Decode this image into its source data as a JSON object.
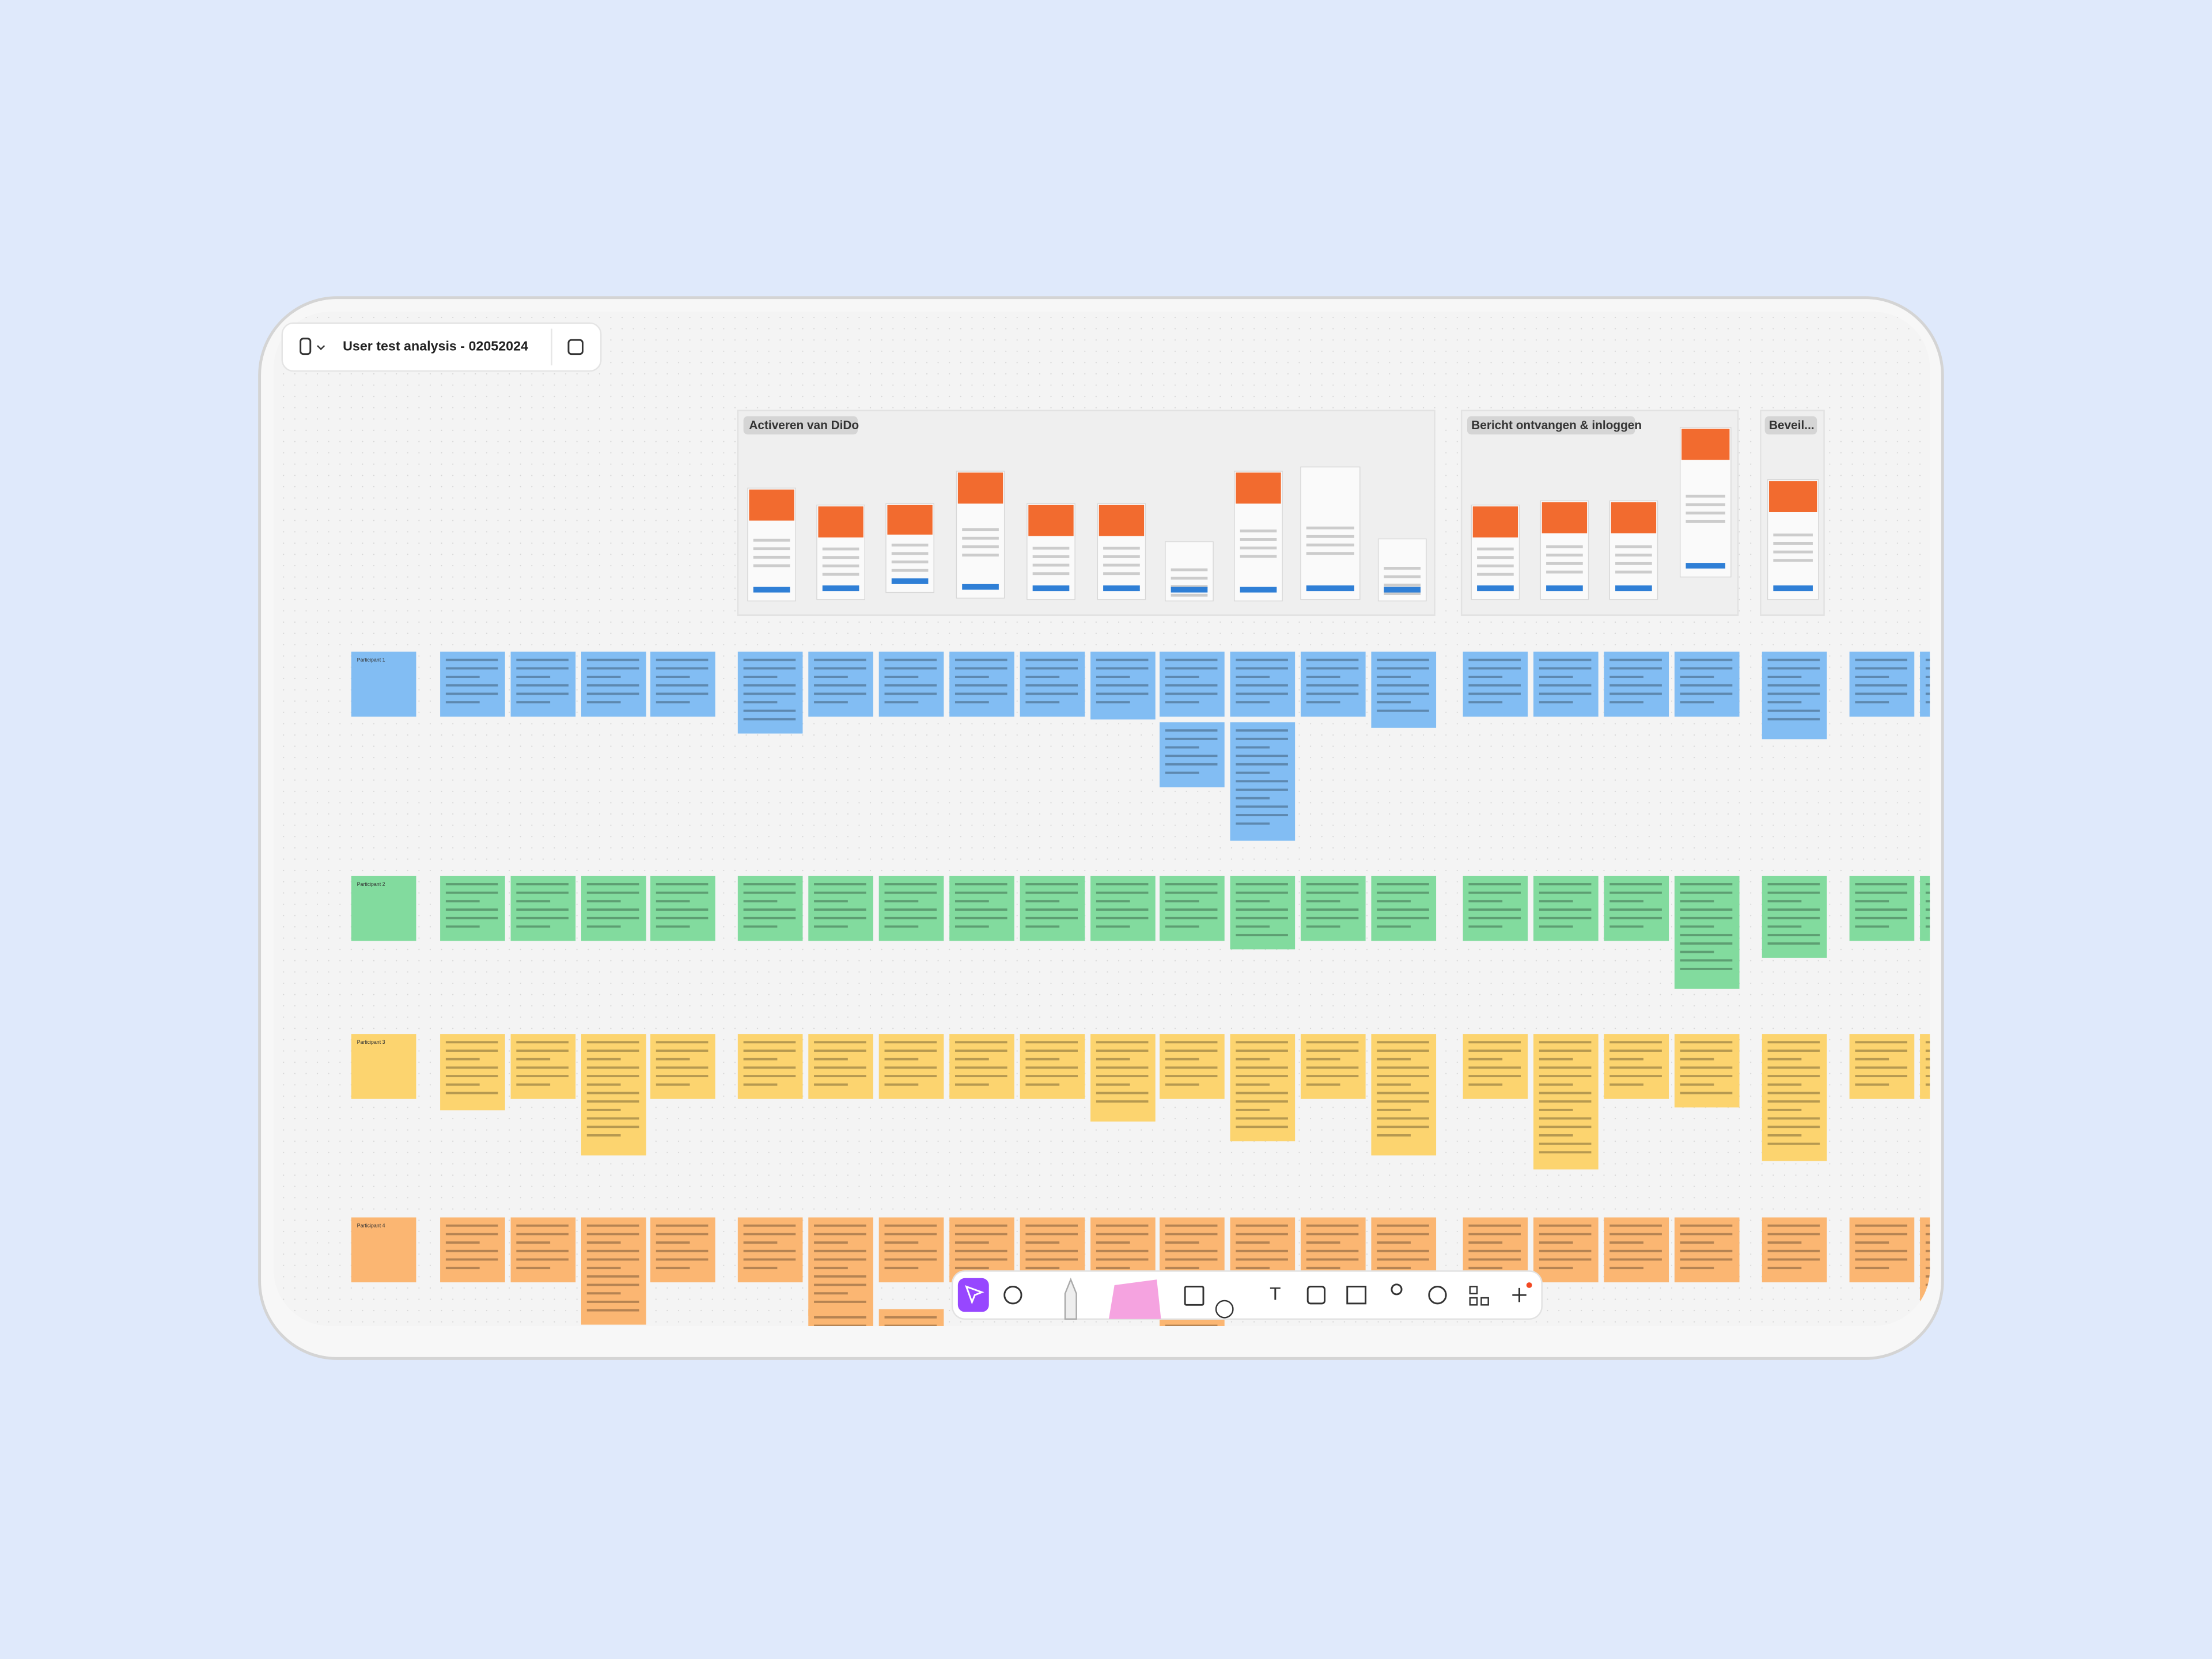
{
  "header": {
    "title": "User test analysis - 02052024"
  },
  "sections": [
    {
      "label": "Activeren van DiDo"
    },
    {
      "label": "Bericht ontvangen & inloggen"
    },
    {
      "label": "Beveil..."
    }
  ],
  "rows": [
    {
      "label": "Participant 1"
    },
    {
      "label": "Participant 2"
    },
    {
      "label": "Participant 3"
    },
    {
      "label": "Participant 4"
    }
  ]
}
